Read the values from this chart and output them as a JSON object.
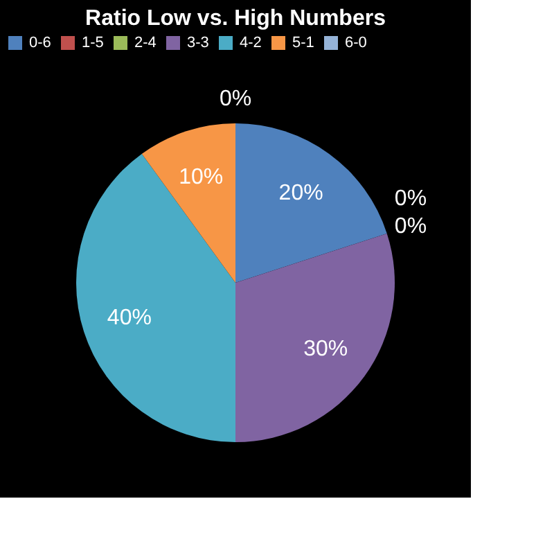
{
  "chart_data": {
    "type": "pie",
    "title": "Ratio Low vs. High Numbers",
    "categories": [
      "0-6",
      "1-5",
      "2-4",
      "3-3",
      "4-2",
      "5-1",
      "6-0"
    ],
    "values": [
      20,
      0,
      0,
      30,
      40,
      10,
      0
    ],
    "value_labels": [
      "20%",
      "0%",
      "0%",
      "30%",
      "40%",
      "10%",
      "0%"
    ],
    "colors": [
      "#4f81bd",
      "#c0504d",
      "#9bbb59",
      "#8064a2",
      "#4bacc6",
      "#f79646",
      "#95b3d7"
    ],
    "legend": "top"
  }
}
